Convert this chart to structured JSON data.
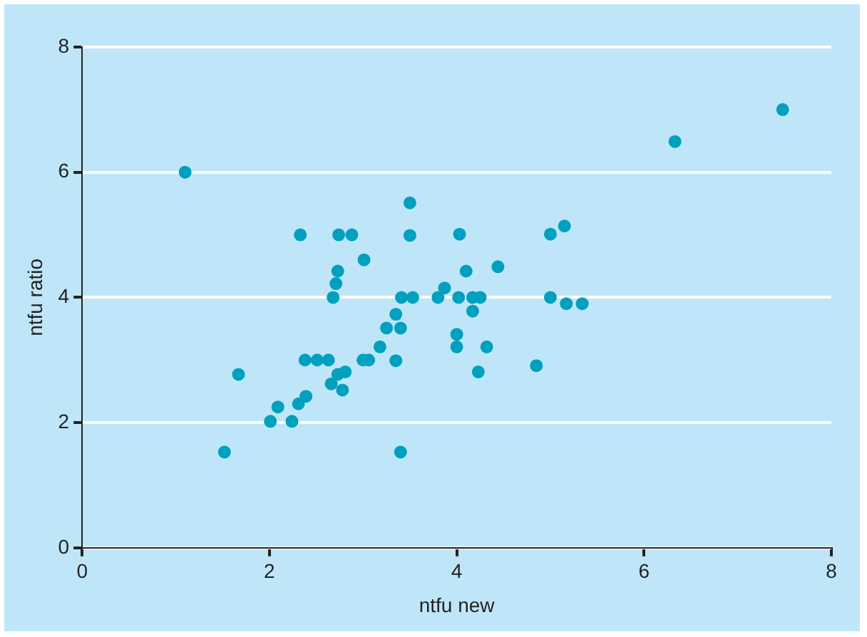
{
  "chart_data": {
    "type": "scatter",
    "xlabel": "ntfu new",
    "ylabel": "ntfu ratio",
    "x": [
      1.1,
      1.52,
      1.67,
      2.01,
      2.09,
      2.24,
      2.33,
      2.31,
      2.39,
      2.38,
      2.51,
      2.63,
      2.66,
      2.68,
      2.71,
      2.73,
      2.74,
      2.73,
      2.81,
      2.78,
      2.88,
      3.01,
      3.35,
      3.25,
      3.4,
      3.18,
      3.0,
      3.06,
      3.35,
      3.4,
      3.5,
      3.5,
      4.03,
      5.0,
      5.15,
      4.44,
      4.1,
      3.87,
      3.8,
      3.41,
      3.53,
      4.02,
      4.17,
      4.25,
      4.17,
      5.0,
      5.17,
      5.34,
      4.0,
      4.0,
      4.32,
      4.23,
      4.85,
      6.33,
      7.48
    ],
    "series": [
      {
        "color": "#00a0be",
        "values": [
          6.0,
          1.53,
          2.77,
          2.02,
          2.25,
          2.02,
          5.0,
          2.3,
          2.42,
          3.0,
          3.0,
          3.0,
          2.62,
          4.0,
          4.22,
          4.42,
          5.0,
          2.77,
          2.81,
          2.52,
          5.0,
          4.6,
          3.73,
          3.51,
          3.51,
          3.21,
          3.0,
          3.0,
          2.99,
          1.53,
          5.51,
          4.99,
          5.01,
          5.01,
          5.14,
          4.49,
          4.42,
          4.15,
          4.0,
          4.0,
          4.0,
          4.0,
          4.0,
          4.0,
          3.78,
          4.0,
          3.9,
          3.9,
          3.41,
          3.21,
          3.21,
          2.81,
          2.91,
          6.49,
          7.0
        ]
      }
    ],
    "xlim": [
      0,
      8
    ],
    "ylim": [
      0,
      8
    ],
    "xticks": [
      0,
      2,
      4,
      6,
      8
    ],
    "yticks": [
      0,
      2,
      4,
      6,
      8
    ],
    "grid": "y",
    "legend": false,
    "marker": "circle"
  }
}
